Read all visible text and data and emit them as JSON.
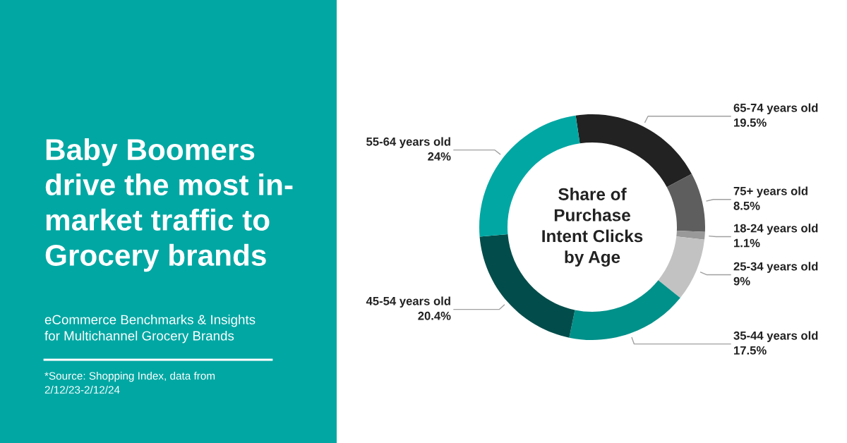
{
  "chart_data": {
    "type": "donut",
    "title": "Baby Boomers\ndrive the most in-\nmarket traffic to\nGrocery brands",
    "subtitle": "eCommerce Benchmarks & Insights\nfor Multichannel Grocery Brands",
    "annotations": [
      "Share of\nPurchase\nIntent Clicks\nby Age",
      "*Source: Shopping Index, data from\n2/12/23-2/12/24"
    ],
    "categories": [
      "65-74 years old",
      "75+ years old",
      "18-24 years old",
      "25-34 years old",
      "35-44 years old",
      "45-54 years old",
      "55-64 years old"
    ],
    "values": [
      19.5,
      8.5,
      1.1,
      9,
      17.5,
      20.4,
      24
    ],
    "value_labels": [
      "19.5%",
      "8.5%",
      "1.1%",
      "9%",
      "17.5%",
      "20.4%",
      "24%"
    ],
    "colors": [
      "#222222",
      "#5e5e5e",
      "#999999",
      "#c2c2c2",
      "#00918a",
      "#024d4b",
      "#00a7a3"
    ]
  }
}
